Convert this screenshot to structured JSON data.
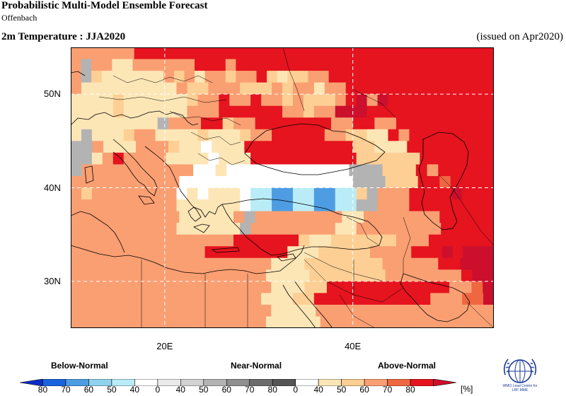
{
  "header": {
    "title": "Probabilistic Multi-Model Ensemble Forecast",
    "subtitle": "Offenbach",
    "variable": "2m Temperature : JJA2020",
    "issued": "(issued on Apr2020)"
  },
  "map": {
    "lon_range": [
      10,
      55
    ],
    "lat_range": [
      25,
      55
    ],
    "lat_ticks": [
      {
        "value": 50,
        "label": "50N"
      },
      {
        "value": 40,
        "label": "40N"
      },
      {
        "value": 30,
        "label": "30N"
      }
    ],
    "lon_ticks": [
      {
        "value": 20,
        "label": "20E"
      },
      {
        "value": 40,
        "label": "40E"
      }
    ],
    "cell_colors": {
      "D": "#b3b3b3",
      "w": "#ffffff",
      "c": "#b9ecf7",
      "b": "#4e9de3",
      "1": "#fde6b6",
      "2": "#fecf94",
      "3": "#fa9f72",
      "4": "#ef6741",
      "5": "#e5141f",
      "6": "#cc0f2d"
    },
    "grid_rows": [
      "3333335555555555555555555555555555555555",
      "3D331133333355535555555555555555555555555",
      "3D211111132313323352122335555555555555555",
      "3111111111322333222323313355555555555555",
      "1111211111123353353323222356365555555555",
      "1111211111133355555533233666555555555555",
      "11111111D333552335555555335533555555555",
      "1D11123311112111233555553322115355555555",
      "DD3111333211w11155555555552211155555555",
      "DD13533331111w11155555555552222225555555",
      "D3333333333ww1wwwwwwwwwwwDDD2225355555",
      "3333333333wwwwwwwwwwwwwwwwDDD2225545555",
      "3233333333w1w111wccbbccbbcc2D33355556555",
      "3333333333111111wccbbccbbccDD33355555555",
      "3333333333111113D3333333311333333355555",
      "3333333333111111D33333333113333333355555",
      "333333333333333555555211222222333555555",
      "33333333333335555555511122222333355565666",
      "33333333333333333311122222223333355666",
      "333333333333333333111122222223333333566",
      "33333333333333333311122555555555553346",
      "3333333333333333331112255555555555333446",
      "33333333333333333311113333333333333333",
      "333333333333333333111113333333333333333"
    ]
  },
  "legend": {
    "below_label": "Below-Normal",
    "near_label": "Near-Normal",
    "above_label": "Above-Normal",
    "unit": "[%]",
    "cbar_colors": [
      "#0b2cc6",
      "#1a63de",
      "#4e9de3",
      "#8fd3ee",
      "#b9ecf7",
      "#ffffff",
      "#eaeaea",
      "#d2d2d2",
      "#b3b3b3",
      "#8f8f8f",
      "#6c6c6c",
      "#555555",
      "#ffffff",
      "#fde6b6",
      "#fecf94",
      "#fa9f72",
      "#ef6741",
      "#e5141f",
      "#cc0f2d"
    ],
    "cbar_labels": [
      "80",
      "70",
      "60",
      "50",
      "40",
      "0",
      "40",
      "50",
      "60",
      "70",
      "80",
      "0",
      "40",
      "50",
      "60",
      "70",
      "80"
    ]
  },
  "logo": {
    "text_line1": "WMO Lead Centre for",
    "text_line2": "LRF MME"
  }
}
